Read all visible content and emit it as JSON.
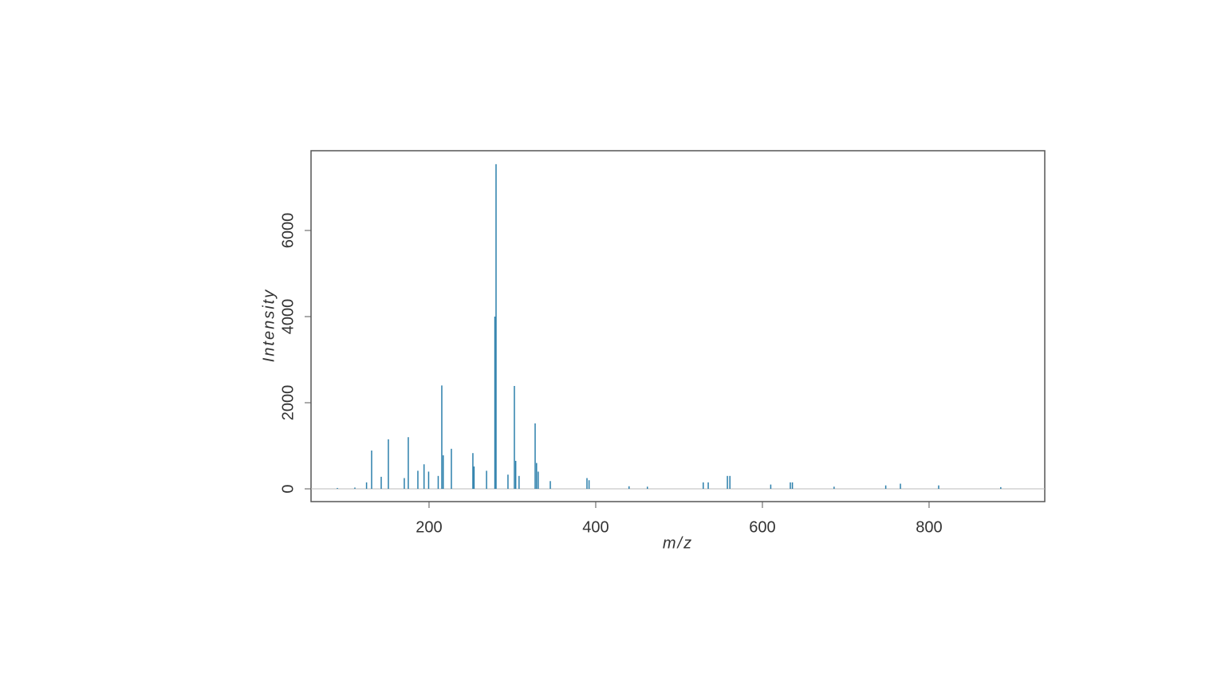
{
  "chart_data": {
    "type": "spectrum",
    "x_label": "m/z",
    "y_label": "Intensity",
    "color": "#2b7fab",
    "x": [
      90,
      111,
      125,
      131.1,
      142.6,
      151.2,
      170.3,
      175.1,
      186.6,
      194,
      199.5,
      211,
      215.3,
      217,
      226.8,
      252.6,
      254,
      269,
      279,
      280.4,
      294.7,
      302.4,
      304,
      308,
      327.3,
      329,
      331,
      345.5,
      389.5,
      392,
      440,
      462,
      529,
      535,
      558,
      561,
      610,
      633.5,
      636,
      686,
      748,
      765.6,
      811.5,
      886
    ],
    "values": [
      20,
      30,
      150,
      890,
      280,
      1150,
      250,
      1200,
      420,
      570,
      400,
      300,
      2400,
      780,
      930,
      830,
      520,
      420,
      4000,
      7540,
      330,
      2390,
      650,
      300,
      1520,
      600,
      400,
      180,
      250,
      200,
      60,
      50,
      150,
      150,
      300,
      300,
      100,
      150,
      150,
      50,
      80,
      120,
      80,
      40
    ],
    "xlim": [
      58.4,
      938.8
    ],
    "ylim": [
      -296,
      7852
    ],
    "xticks": [
      200,
      400,
      600,
      800
    ],
    "yticks": [
      0,
      2000,
      4000,
      6000
    ]
  }
}
